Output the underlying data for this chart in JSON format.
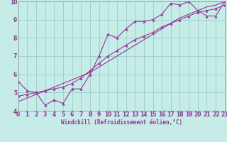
{
  "title": "",
  "xlabel": "Windchill (Refroidissement éolien,°C)",
  "background_color": "#c5ece6",
  "grid_color": "#99cccc",
  "line_color": "#993399",
  "xlim": [
    0,
    23
  ],
  "ylim": [
    4,
    10
  ],
  "xticks": [
    0,
    1,
    2,
    3,
    4,
    5,
    6,
    7,
    8,
    9,
    10,
    11,
    12,
    13,
    14,
    15,
    16,
    17,
    18,
    19,
    20,
    21,
    22,
    23
  ],
  "yticks": [
    4,
    5,
    6,
    7,
    8,
    9,
    10
  ],
  "line1_x": [
    0,
    1,
    2,
    3,
    4,
    5,
    6,
    7,
    8,
    9,
    10,
    11,
    12,
    13,
    14,
    15,
    16,
    17,
    18,
    19,
    20,
    21,
    22,
    23
  ],
  "line1_y": [
    5.6,
    5.1,
    5.0,
    4.3,
    4.6,
    4.4,
    5.2,
    5.2,
    6.0,
    7.0,
    8.2,
    8.0,
    8.5,
    8.9,
    8.9,
    9.0,
    9.3,
    9.9,
    9.8,
    10.0,
    9.5,
    9.2,
    9.2,
    10.0
  ],
  "line2_x": [
    0,
    1,
    2,
    3,
    4,
    5,
    6,
    7,
    8,
    9,
    10,
    11,
    12,
    13,
    14,
    15,
    16,
    17,
    18,
    19,
    20,
    21,
    22,
    23
  ],
  "line2_y": [
    4.8,
    4.9,
    5.0,
    5.1,
    5.2,
    5.3,
    5.5,
    5.8,
    6.2,
    6.6,
    7.0,
    7.3,
    7.6,
    7.9,
    8.1,
    8.3,
    8.6,
    8.8,
    9.0,
    9.2,
    9.4,
    9.5,
    9.6,
    9.8
  ],
  "line3_x": [
    0,
    1,
    2,
    3,
    4,
    5,
    6,
    7,
    8,
    9,
    10,
    11,
    12,
    13,
    14,
    15,
    16,
    17,
    18,
    19,
    20,
    21,
    22,
    23
  ],
  "line3_y": [
    4.5,
    4.7,
    4.9,
    5.1,
    5.3,
    5.5,
    5.7,
    5.9,
    6.1,
    6.4,
    6.7,
    7.0,
    7.3,
    7.6,
    7.9,
    8.2,
    8.5,
    8.8,
    9.1,
    9.3,
    9.5,
    9.7,
    9.8,
    10.0
  ],
  "tick_fontsize": 5.5,
  "xlabel_fontsize": 5.5,
  "marker_size": 2.5,
  "line_width": 0.8
}
